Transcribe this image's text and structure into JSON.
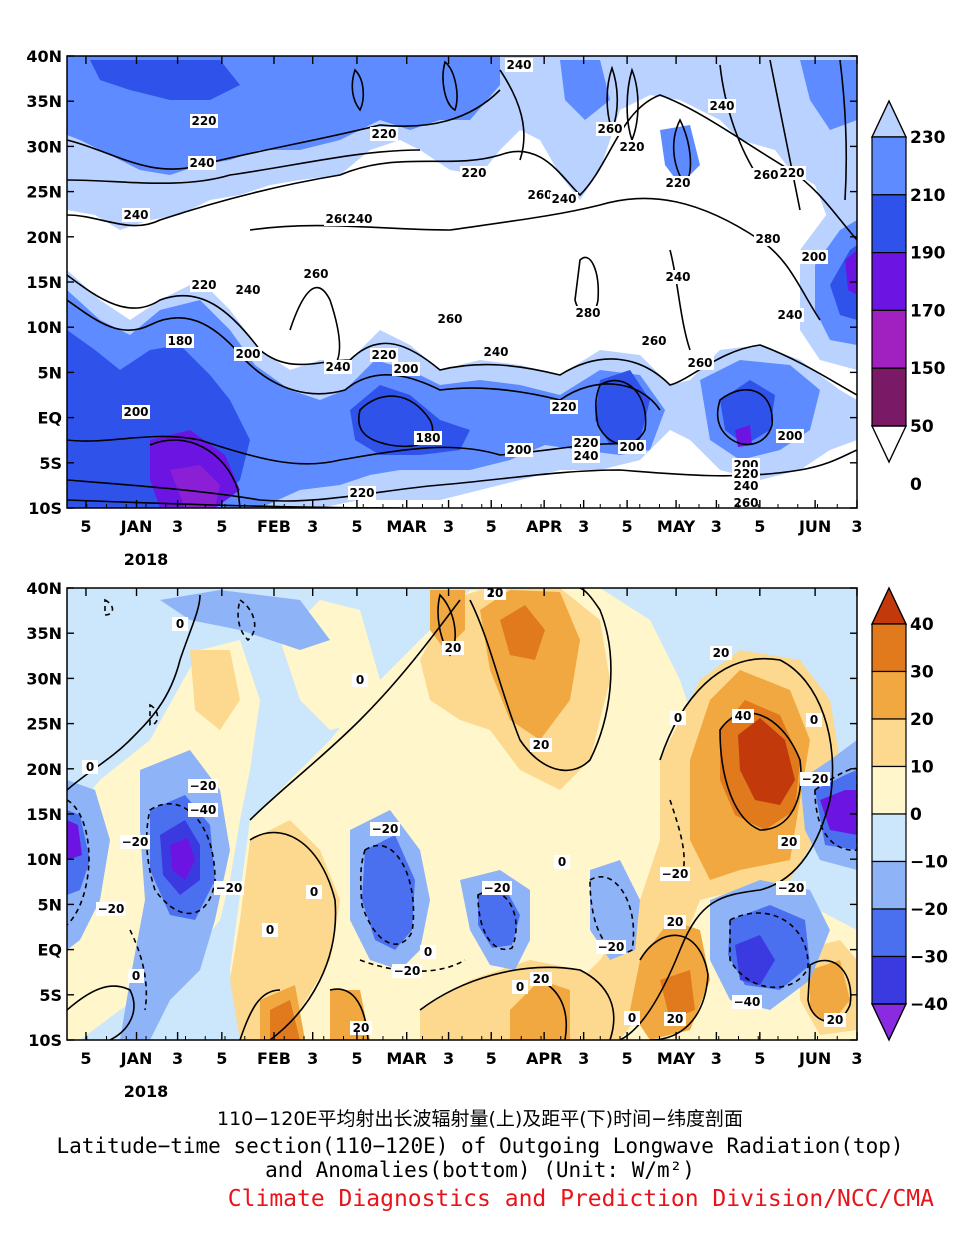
{
  "caption": {
    "line_cn": "110−120E平均射出长波辐射量(上)及距平(下)时间−纬度剖面",
    "line_en_1": "Latitude−time section(110−120E) of Outgoing Longwave Radiation(top)",
    "line_en_2": "and Anomalies(bottom) (Unit: W/m²)",
    "credit": "Climate Diagnostics and Prediction Division/NCC/CMA"
  },
  "chart_data": [
    {
      "type": "heatmap",
      "name": "OLR",
      "title": "",
      "y_ticks": [
        "40N",
        "35N",
        "30N",
        "25N",
        "20N",
        "15N",
        "10N",
        "5N",
        "EQ",
        "5S",
        "10S"
      ],
      "x_ticks": [
        "5",
        "JAN",
        "3",
        "5",
        "FEB",
        "3",
        "5",
        "MAR",
        "3",
        "5",
        "APR",
        "3",
        "5",
        "MAY",
        "3",
        "5",
        "JUN",
        "3"
      ],
      "x_year_label": "2018",
      "colorbar": {
        "labels": [
          "230",
          "210",
          "190",
          "170",
          "150",
          "50",
          "0"
        ],
        "colors": [
          "#b9d2ff",
          "#5e8bff",
          "#2f52ea",
          "#6c15e3",
          "#a020c0",
          "#7a1a66",
          "#ffffff"
        ]
      },
      "contour_labels": [
        "220",
        "240",
        "220",
        "260",
        "220",
        "240",
        "260",
        "260",
        "240",
        "260",
        "220",
        "240",
        "280",
        "220",
        "260",
        "220",
        "240",
        "240",
        "200",
        "220",
        "180",
        "200",
        "240",
        "200",
        "260",
        "240",
        "280",
        "180",
        "200",
        "220",
        "260",
        "260",
        "220",
        "240",
        "200",
        "240",
        "260",
        "220",
        "200",
        "200",
        "220",
        "240",
        "260"
      ],
      "grid": false
    },
    {
      "type": "heatmap",
      "name": "OLR anomaly",
      "title": "",
      "y_ticks": [
        "40N",
        "35N",
        "30N",
        "25N",
        "20N",
        "15N",
        "10N",
        "5N",
        "EQ",
        "5S",
        "10S"
      ],
      "x_ticks": [
        "5",
        "JAN",
        "3",
        "5",
        "FEB",
        "3",
        "5",
        "MAR",
        "3",
        "5",
        "APR",
        "3",
        "5",
        "MAY",
        "3",
        "5",
        "JUN",
        "3"
      ],
      "x_year_label": "2018",
      "colorbar": {
        "labels": [
          "40",
          "30",
          "20",
          "10",
          "0",
          "−10",
          "−20",
          "−30",
          "−40"
        ],
        "colors": [
          "#c23a0b",
          "#e07a1c",
          "#f2a840",
          "#fcd98e",
          "#fff6cc",
          "#cce6fb",
          "#8fb3f7",
          "#4a70ef",
          "#3a3ae0",
          "#8a2be2"
        ]
      },
      "contour_labels": [
        "0",
        "20",
        "20",
        "0",
        "0",
        "−20",
        "−40",
        "20",
        "0",
        "−20",
        "−20",
        "−20",
        "0",
        "0",
        "−20",
        "0",
        "−20",
        "0",
        "0",
        "20",
        "−20",
        "−20",
        "−20",
        "0",
        "20",
        "40",
        "0",
        "−20",
        "20",
        "−20",
        "20",
        "−40",
        "20",
        "20",
        "0",
        "20"
      ],
      "grid": false
    }
  ]
}
